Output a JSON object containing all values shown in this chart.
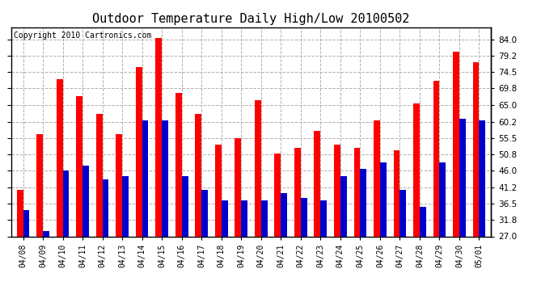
{
  "title": "Outdoor Temperature Daily High/Low 20100502",
  "copyright": "Copyright 2010 Cartronics.com",
  "dates": [
    "04/08",
    "04/09",
    "04/10",
    "04/11",
    "04/12",
    "04/13",
    "04/14",
    "04/15",
    "04/16",
    "04/17",
    "04/18",
    "04/19",
    "04/20",
    "04/21",
    "04/22",
    "04/23",
    "04/24",
    "04/25",
    "04/26",
    "04/27",
    "04/28",
    "04/29",
    "04/30",
    "05/01"
  ],
  "highs": [
    40.5,
    56.5,
    72.5,
    67.5,
    62.5,
    56.5,
    76.0,
    84.5,
    68.5,
    62.5,
    53.5,
    55.5,
    66.5,
    51.0,
    52.5,
    57.5,
    53.5,
    52.5,
    60.5,
    52.0,
    65.5,
    72.0,
    80.5,
    77.5
  ],
  "lows": [
    34.5,
    28.5,
    46.0,
    47.5,
    43.5,
    44.5,
    60.5,
    60.5,
    44.5,
    40.5,
    37.5,
    37.5,
    37.5,
    39.5,
    38.0,
    37.5,
    44.5,
    46.5,
    48.5,
    40.5,
    35.5,
    48.5,
    61.0,
    60.5
  ],
  "high_color": "#ff0000",
  "low_color": "#0000cc",
  "ylim_min": 27.0,
  "ylim_max": 87.5,
  "yticks": [
    27.0,
    31.8,
    36.5,
    41.2,
    46.0,
    50.8,
    55.5,
    60.2,
    65.0,
    69.8,
    74.5,
    79.2,
    84.0
  ],
  "background_color": "#ffffff",
  "grid_color": "#b0b0b0",
  "title_fontsize": 11,
  "copyright_fontsize": 7,
  "bar_width": 0.32,
  "figwidth": 6.9,
  "figheight": 3.75,
  "dpi": 100
}
